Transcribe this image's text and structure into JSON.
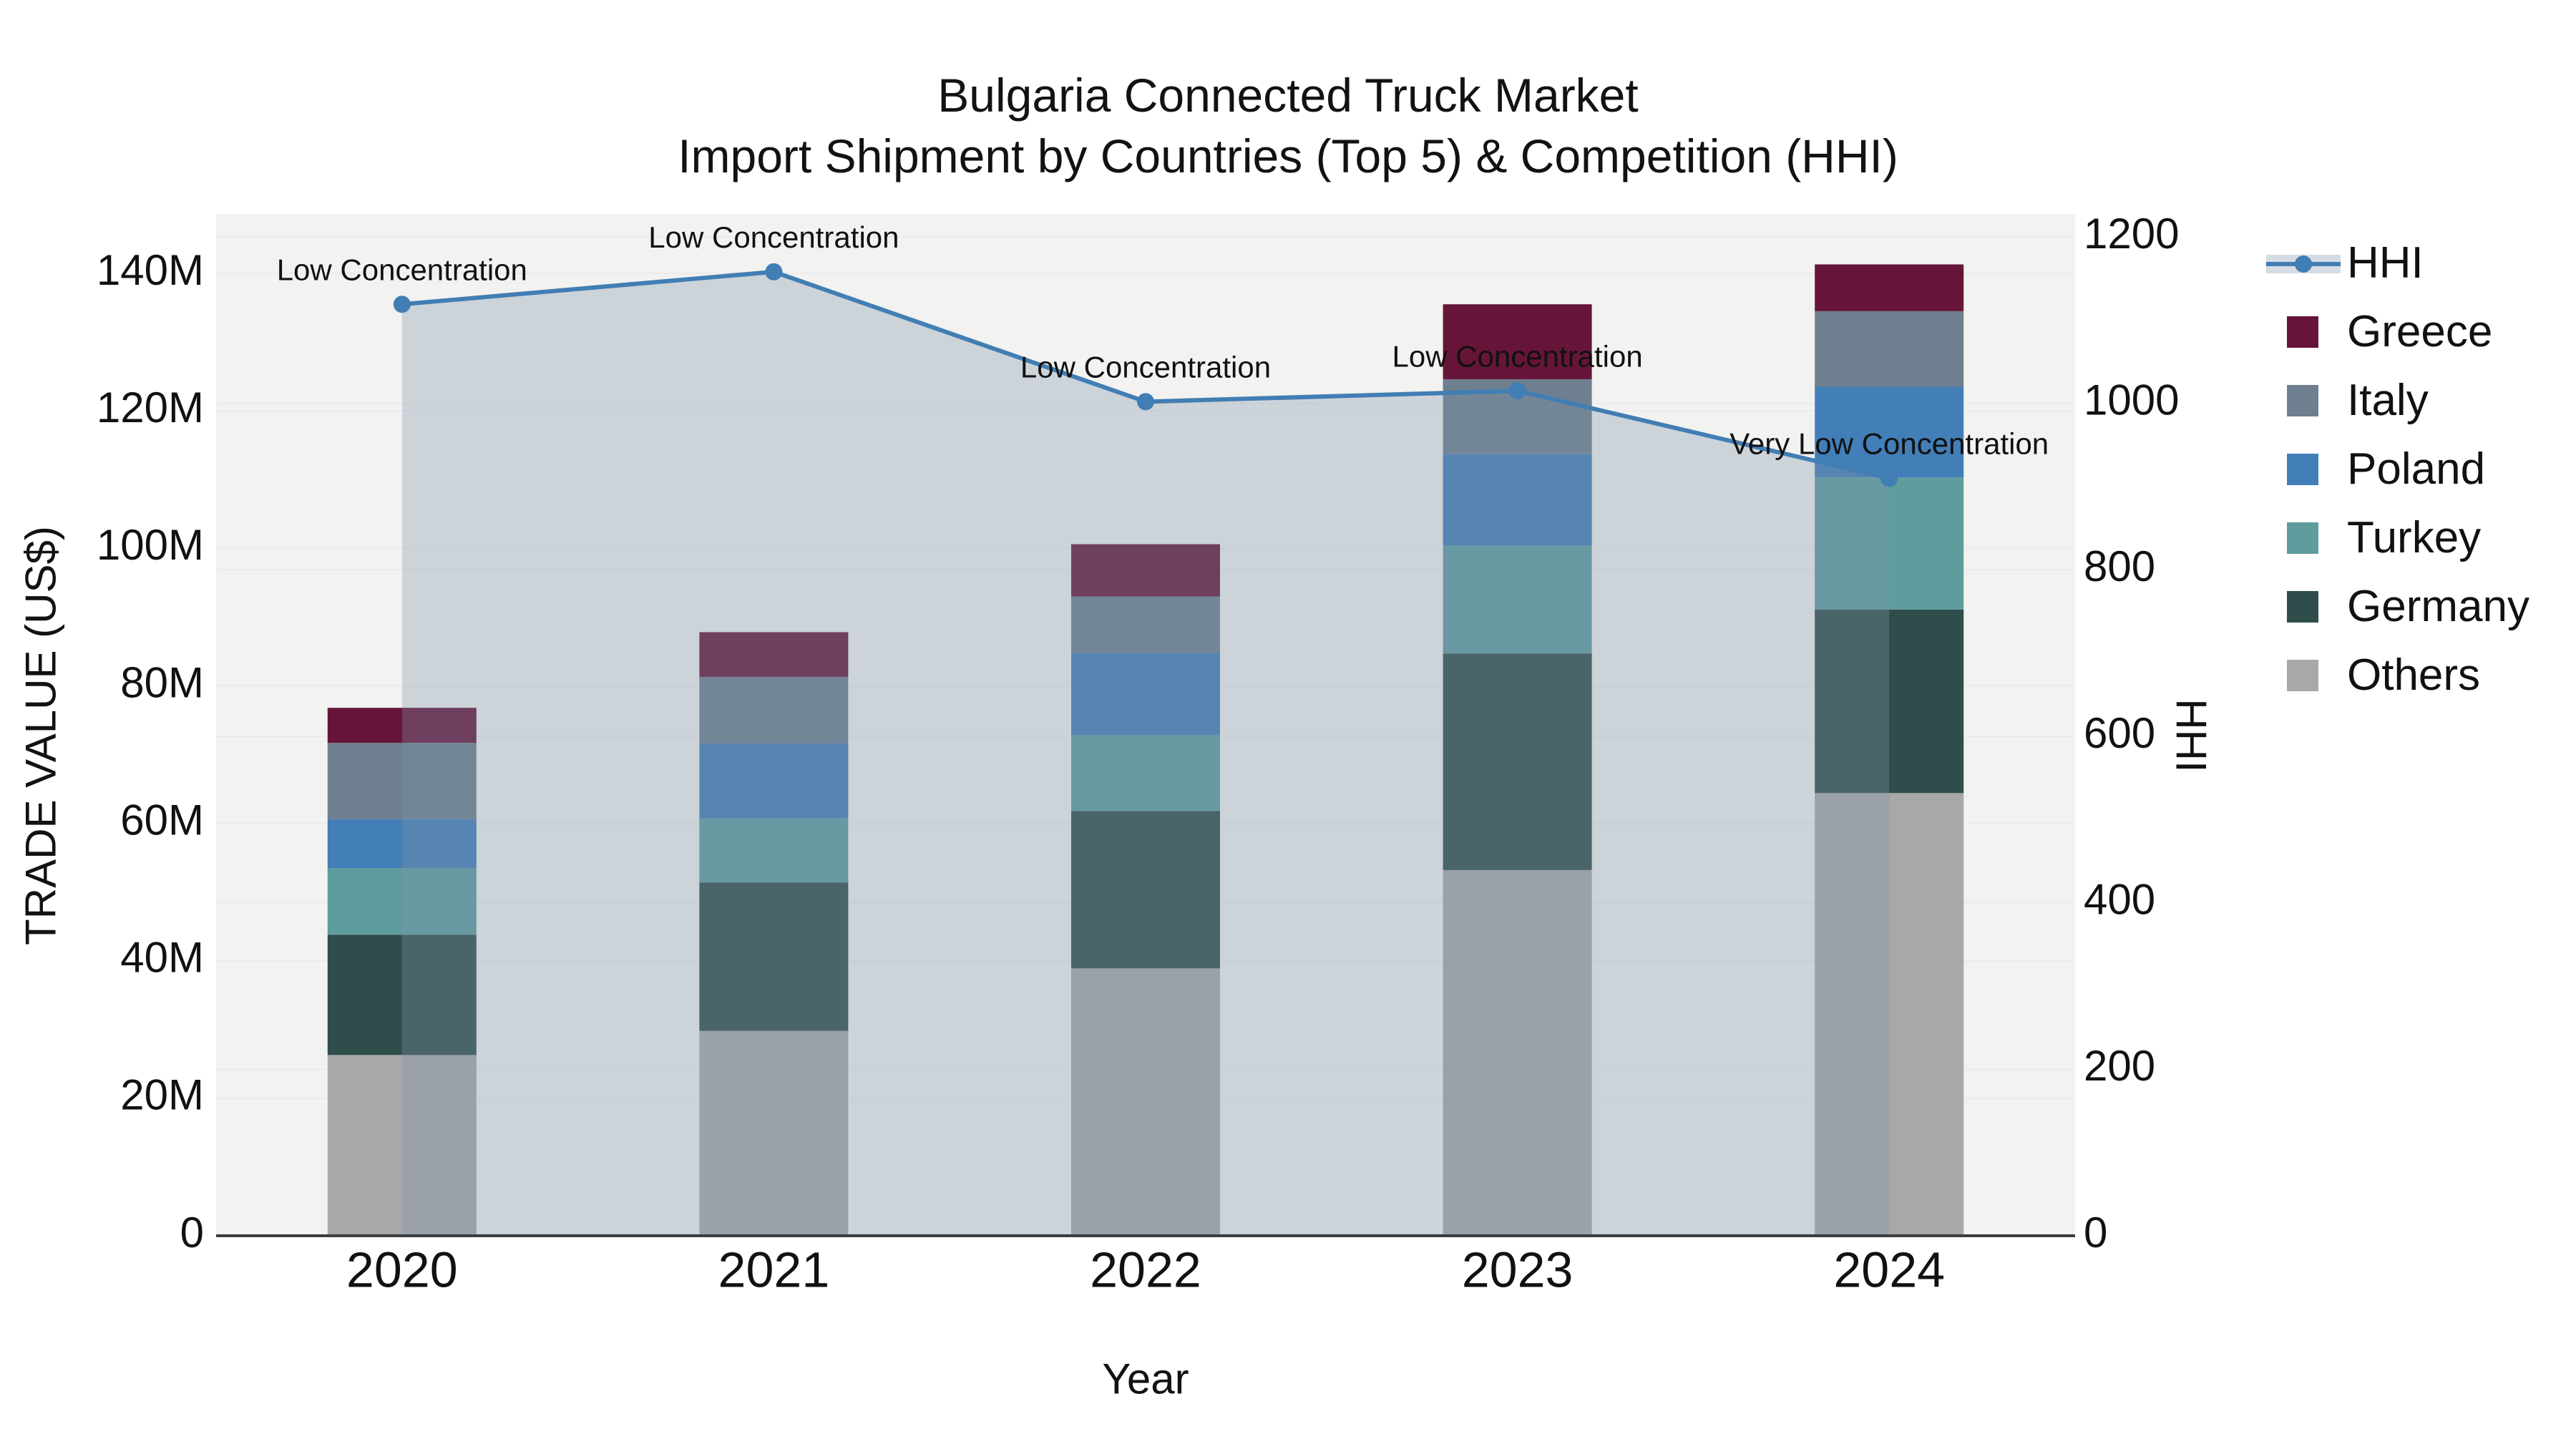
{
  "title": {
    "line1": "Bulgaria Connected Truck Market",
    "line2": "Import Shipment by Countries (Top 5) & Competition (HHI)"
  },
  "axes": {
    "x": {
      "title": "Year",
      "tick_labels": [
        "2020",
        "2021",
        "2022",
        "2023",
        "2024"
      ]
    },
    "y_left": {
      "title": "TRADE VALUE (US$)",
      "tick_labels": [
        "0",
        "20M",
        "40M",
        "60M",
        "80M",
        "100M",
        "120M",
        "140M"
      ],
      "tick_values_musd": [
        0,
        20,
        40,
        60,
        80,
        100,
        120,
        140
      ]
    },
    "y_right": {
      "title": "HHI",
      "tick_labels": [
        "0",
        "200",
        "400",
        "600",
        "800",
        "1000",
        "1200"
      ],
      "tick_values": [
        0,
        200,
        400,
        600,
        800,
        1000,
        1200
      ]
    }
  },
  "legend": {
    "items": [
      {
        "label": "HHI",
        "type": "line",
        "color": "#417EB4"
      },
      {
        "label": "Greece",
        "type": "square",
        "color": "#661539"
      },
      {
        "label": "Italy",
        "type": "square",
        "color": "#6E7F8F"
      },
      {
        "label": "Poland",
        "type": "square",
        "color": "#427EB7"
      },
      {
        "label": "Turkey",
        "type": "square",
        "color": "#5F9C9E"
      },
      {
        "label": "Germany",
        "type": "square",
        "color": "#2F4E4B"
      },
      {
        "label": "Others",
        "type": "square",
        "color": "#A8A8A8"
      }
    ]
  },
  "chart_data": {
    "type": "bar+line",
    "title": "Bulgaria Connected Truck Market — Import Shipment by Countries (Top 5) & Competition (HHI)",
    "xlabel": "Year",
    "ylabel_left": "TRADE VALUE (US$)",
    "ylabel_right": "HHI",
    "categories": [
      "2020",
      "2021",
      "2022",
      "2023",
      "2024"
    ],
    "bar_unit": "million US$",
    "bar_stack_order_bottom_to_top": [
      "Others",
      "Germany",
      "Turkey",
      "Poland",
      "Italy",
      "Greece"
    ],
    "series": [
      {
        "name": "Others",
        "color": "#A8A8A8",
        "values": [
          26.3,
          29.8,
          38.9,
          53.2,
          64.4
        ]
      },
      {
        "name": "Germany",
        "color": "#2F4E4B",
        "values": [
          17.5,
          21.6,
          22.9,
          31.5,
          26.7
        ]
      },
      {
        "name": "Turkey",
        "color": "#5F9C9E",
        "values": [
          9.7,
          9.3,
          11.0,
          15.7,
          19.2
        ]
      },
      {
        "name": "Poland",
        "color": "#427EB7",
        "values": [
          7.1,
          10.9,
          12.0,
          13.3,
          13.2
        ]
      },
      {
        "name": "Italy",
        "color": "#6E7F8F",
        "values": [
          11.1,
          9.7,
          8.2,
          10.9,
          11.0
        ]
      },
      {
        "name": "Greece",
        "color": "#661539",
        "values": [
          5.1,
          6.5,
          7.6,
          10.9,
          6.8
        ]
      }
    ],
    "stack_totals_musd": [
      76.8,
      87.8,
      100.6,
      135.5,
      141.3
    ],
    "hhi_line": {
      "name": "HHI",
      "color": "#417EB4",
      "area_fill": "rgba(129,148,170,0.33)",
      "values": [
        1119,
        1158,
        1002,
        1015,
        910
      ]
    },
    "annotations": [
      {
        "x": "2020",
        "text": "Low Concentration"
      },
      {
        "x": "2021",
        "text": "Low Concentration"
      },
      {
        "x": "2022",
        "text": "Low Concentration"
      },
      {
        "x": "2023",
        "text": "Low Concentration"
      },
      {
        "x": "2024",
        "text": "Very Low Concentration"
      }
    ],
    "y_left_axis_range_musd": [
      0,
      148.6
    ],
    "y_right_axis_range": [
      0,
      1228
    ],
    "grid": true,
    "legend_position": "right"
  },
  "colors": {
    "plot_background": "#F2F2F0",
    "figure_background": "#FFFFFF",
    "gridline": "#EBEBEB",
    "axis_line": "#3A3D40",
    "text": "#111111"
  }
}
